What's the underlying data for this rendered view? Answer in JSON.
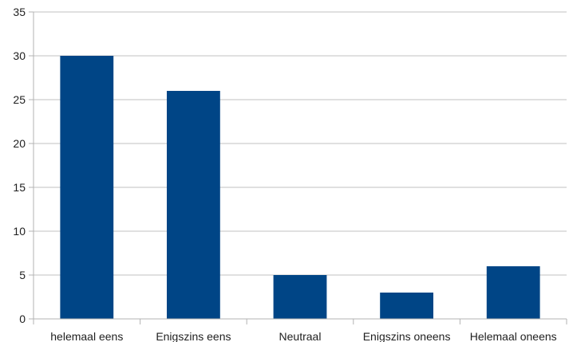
{
  "chart_data": {
    "type": "bar",
    "categories": [
      "helemaal eens",
      "Enigszins eens",
      "Neutraal",
      "Enigszins oneens",
      "Helemaal oneens"
    ],
    "values": [
      30,
      26,
      5,
      3,
      6
    ],
    "title": "",
    "xlabel": "",
    "ylabel": "",
    "ylim": [
      0,
      35
    ],
    "yticks": [
      0,
      5,
      10,
      15,
      20,
      25,
      30,
      35
    ],
    "grid": true,
    "legend": "none",
    "colors": {
      "bar": "#004586",
      "grid": "#c0c0c0",
      "axis": "#b3b3b3",
      "text": "#1f1f1f"
    }
  }
}
